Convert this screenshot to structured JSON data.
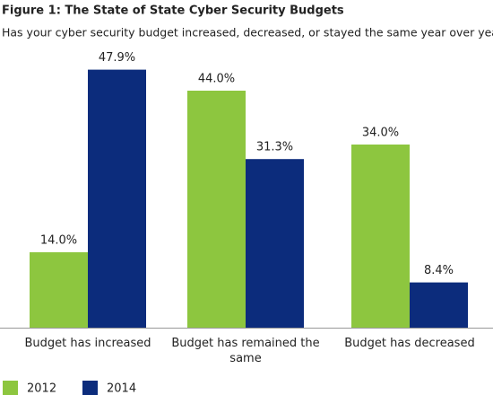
{
  "chart_data": {
    "type": "bar",
    "title": "Figure 1: The State of State Cyber Security Budgets",
    "subtitle": "Has your cyber security budget increased, decreased, or stayed the same year over year?",
    "categories": [
      "Budget has increased",
      "Budget has remained the same",
      "Budget has decreased"
    ],
    "series": [
      {
        "name": "2012",
        "color": "#8dc63f",
        "values": [
          14.0,
          44.0,
          34.0
        ],
        "value_labels": [
          "14.0%",
          "44.0%",
          "34.0%"
        ]
      },
      {
        "name": "2014",
        "color": "#0c2c7c",
        "values": [
          47.9,
          31.3,
          8.4
        ],
        "value_labels": [
          "47.9%",
          "31.3%",
          "8.4%"
        ]
      }
    ],
    "legend": "bottom-left"
  }
}
